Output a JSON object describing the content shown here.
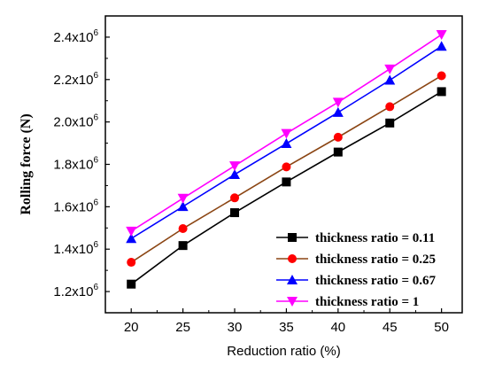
{
  "chart_data": {
    "type": "line",
    "xlabel": "Reduction ratio (%)",
    "ylabel": "Rolling force (N)",
    "xlim": [
      17.5,
      52.0
    ],
    "ylim": [
      1100000,
      2500000
    ],
    "x": [
      20,
      25,
      30,
      35,
      40,
      45,
      50
    ],
    "x_ticks": [
      20,
      25,
      30,
      35,
      40,
      45,
      50
    ],
    "x_tick_labels": [
      "20",
      "25",
      "30",
      "35",
      "40",
      "45",
      "50"
    ],
    "y_ticks": [
      1200000,
      1400000,
      1600000,
      1800000,
      2000000,
      2200000,
      2400000
    ],
    "y_tick_mantissas": [
      "1.2x10",
      "1.4x10",
      "1.6x10",
      "1.8x10",
      "2.0x10",
      "2.2x10",
      "2.4x10"
    ],
    "y_tick_exponent": "6",
    "grid": false,
    "legend_position": "bottom-right",
    "series": [
      {
        "name": "thickness ratio = 0.11",
        "color": "#000000",
        "marker": "square",
        "values": [
          1235000,
          1417000,
          1572000,
          1717000,
          1858000,
          1995000,
          2143000
        ]
      },
      {
        "name": "thickness ratio = 0.25",
        "color": "#8B4513",
        "marker_color": "#FF0000",
        "marker": "circle",
        "values": [
          1338000,
          1497000,
          1642000,
          1788000,
          1928000,
          2072000,
          2218000
        ]
      },
      {
        "name": "thickness ratio = 0.67",
        "color": "#0000FF",
        "marker": "triangle-up",
        "values": [
          1450000,
          1601000,
          1752000,
          1898000,
          2045000,
          2197000,
          2357000
        ]
      },
      {
        "name": "thickness ratio = 1",
        "color": "#FF00FF",
        "marker": "triangle-down",
        "values": [
          1485000,
          1640000,
          1793000,
          1946000,
          2093000,
          2250000,
          2412000
        ]
      }
    ]
  }
}
